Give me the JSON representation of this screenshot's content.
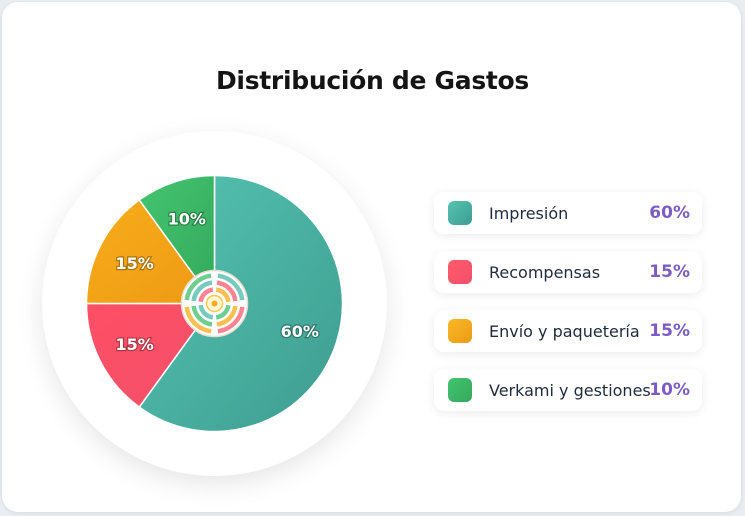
{
  "chart_data": {
    "type": "pie",
    "title": "Distribución de Gastos",
    "slices": [
      {
        "label": "Impresión",
        "value": 60,
        "display": "60%",
        "color": "#4bb8a8"
      },
      {
        "label": "Recompensas",
        "value": 15,
        "display": "15%",
        "color": "#ff5b6e"
      },
      {
        "label": "Envío y paquetería",
        "value": 15,
        "display": "15%",
        "color": "#f7aa16"
      },
      {
        "label": "Verkami y gestiones",
        "value": 10,
        "display": "10%",
        "color": "#3fbc6a"
      }
    ],
    "legend_position": "right"
  }
}
